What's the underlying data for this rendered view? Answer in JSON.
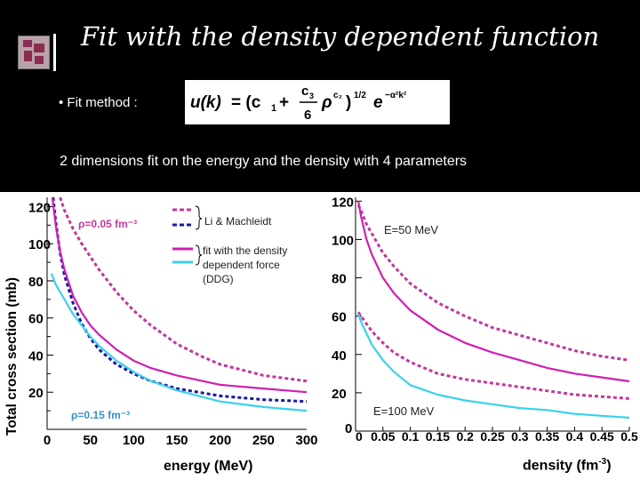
{
  "slide": {
    "title": "Fit with the density dependent function",
    "fit_method_label": "• Fit method :",
    "formula_text": "u(k) = (c1 + (c3/6) ρ^c2)^(1/2) e^(−α²k²)",
    "subtitle": "2 dimensions fit on the energy and the density with 4 parameters"
  },
  "chart_data": [
    {
      "type": "line",
      "panel": "left",
      "title": "",
      "xlabel": "energy (MeV)",
      "ylabel": "Total cross section (mb)",
      "xlim": [
        0,
        300
      ],
      "ylim": [
        0,
        125
      ],
      "x_ticks": [
        0,
        50,
        100,
        150,
        200,
        250,
        300
      ],
      "y_ticks": [
        20,
        40,
        60,
        80,
        100,
        120
      ],
      "legend": {
        "li_label": "Li & Machleidt",
        "ddg_label": "fit with the density dependent force (DDG)"
      },
      "annotations": {
        "rho_top": "ρ=0.05 fm⁻³",
        "rho_bottom": "ρ=0.15 fm⁻³"
      },
      "series": [
        {
          "name": "Li & Machleidt ρ=0.05",
          "color": "#c0399a",
          "dash": "dashed",
          "x": [
            15,
            20,
            30,
            40,
            50,
            60,
            80,
            100,
            120,
            150,
            180,
            200,
            250,
            300
          ],
          "y": [
            125,
            118,
            108,
            100,
            93,
            86,
            74,
            64,
            56,
            46,
            39,
            35,
            29,
            26
          ]
        },
        {
          "name": "Li & Machleidt ρ=0.15",
          "color": "#1a1a9e",
          "dash": "dashed",
          "x": [
            7,
            10,
            15,
            20,
            30,
            40,
            50,
            60,
            80,
            100,
            120,
            150,
            200,
            250,
            300
          ],
          "y": [
            125,
            112,
            95,
            83,
            68,
            57,
            49,
            43,
            35,
            30,
            26,
            22,
            18,
            16,
            15
          ]
        },
        {
          "name": "DDG fit ρ=0.05",
          "color": "#d01fb0",
          "dash": "solid",
          "x": [
            6,
            10,
            15,
            20,
            30,
            40,
            50,
            60,
            80,
            100,
            120,
            150,
            200,
            250,
            300
          ],
          "y": [
            125,
            110,
            96,
            86,
            72,
            63,
            56,
            51,
            43,
            37,
            33,
            29,
            24,
            22,
            20
          ]
        },
        {
          "name": "DDG fit ρ=0.15",
          "color": "#3ad1ec",
          "dash": "solid",
          "x": [
            5,
            10,
            20,
            30,
            40,
            50,
            60,
            80,
            100,
            120,
            150,
            200,
            250,
            300
          ],
          "y": [
            84,
            78,
            70,
            62,
            56,
            50,
            45,
            37,
            31,
            26,
            21,
            15,
            12,
            10
          ]
        }
      ]
    },
    {
      "type": "line",
      "panel": "right",
      "title": "",
      "xlabel": "density (fm",
      "xlabel_sup": "-3",
      "xlabel_end": ")",
      "ylabel": "",
      "xlim": [
        0,
        0.5
      ],
      "ylim": [
        0,
        122
      ],
      "x_ticks": [
        "0",
        "0.05",
        "0.1",
        "0.15",
        "0.2",
        "0.25",
        "0.3",
        "0.35",
        "0.4",
        "0.45",
        "0.5"
      ],
      "y_ticks": [
        20,
        40,
        60,
        80,
        100,
        120
      ],
      "annotations": {
        "e_top": "E=50 MeV",
        "e_bottom": "E=100 MeV",
        "origin_label": "0"
      },
      "series": [
        {
          "name": "Li & Machleidt E=50",
          "color": "#c0399a",
          "dash": "dashed",
          "x": [
            0.005,
            0.01,
            0.02,
            0.03,
            0.05,
            0.07,
            0.1,
            0.15,
            0.2,
            0.25,
            0.3,
            0.35,
            0.4,
            0.45,
            0.5
          ],
          "y": [
            118,
            115,
            108,
            103,
            93,
            86,
            77,
            67,
            60,
            54,
            50,
            46,
            42,
            39,
            37
          ]
        },
        {
          "name": "DDG fit E=50",
          "color": "#d01fb0",
          "dash": "solid",
          "x": [
            0.005,
            0.01,
            0.02,
            0.03,
            0.05,
            0.07,
            0.1,
            0.15,
            0.2,
            0.25,
            0.3,
            0.35,
            0.4,
            0.45,
            0.5
          ],
          "y": [
            120,
            112,
            100,
            92,
            80,
            72,
            63,
            53,
            46,
            41,
            37,
            33,
            30,
            28,
            26
          ]
        },
        {
          "name": "Li & Machleidt E=100",
          "color": "#c0399a",
          "dash": "dashed",
          "x": [
            0.005,
            0.01,
            0.02,
            0.03,
            0.05,
            0.07,
            0.1,
            0.15,
            0.2,
            0.25,
            0.3,
            0.35,
            0.4,
            0.45,
            0.5
          ],
          "y": [
            62,
            60,
            56,
            52,
            46,
            41,
            36,
            30,
            27,
            25,
            23,
            21,
            19,
            18,
            17
          ]
        },
        {
          "name": "DDG fit E=100",
          "color": "#3ad1ec",
          "dash": "solid",
          "x": [
            0.005,
            0.01,
            0.02,
            0.03,
            0.05,
            0.07,
            0.1,
            0.15,
            0.2,
            0.25,
            0.3,
            0.35,
            0.4,
            0.45,
            0.5
          ],
          "y": [
            61,
            57,
            51,
            45,
            37,
            31,
            24,
            19,
            16,
            14,
            12,
            11,
            9,
            8,
            7
          ]
        }
      ]
    }
  ]
}
